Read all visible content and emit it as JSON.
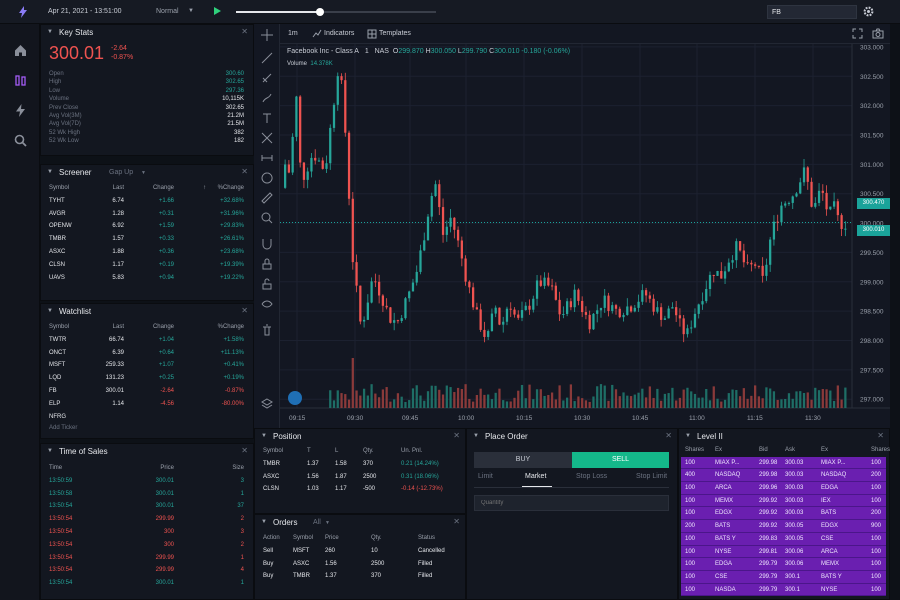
{
  "topbar": {
    "datetime": "Apr 21, 2021 - 13:51:00",
    "speed": "Normal",
    "symbol": "FB",
    "progress": 0.42
  },
  "key_stats": {
    "title": "Key Stats",
    "price": "300.01",
    "change": "-2.64",
    "pct": "-0.87%",
    "rows": [
      [
        "Open",
        "300.60",
        "up"
      ],
      [
        "High",
        "302.65",
        "up"
      ],
      [
        "Low",
        "297.36",
        "up"
      ],
      [
        "Volume",
        "10,115K",
        "wht"
      ],
      [
        "Prev Close",
        "302.65",
        "wht"
      ],
      [
        "Avg Vol(3M)",
        "21.2M",
        "wht"
      ],
      [
        "Avg Vol(7D)",
        "21.5M",
        "wht"
      ],
      [
        "52 Wk High",
        "382",
        "wht"
      ],
      [
        "52 Wk Low",
        "182",
        "wht"
      ]
    ]
  },
  "screener": {
    "title": "Screener",
    "filter": "Gap Up",
    "headers": [
      "Symbol",
      "Last",
      "Change",
      "%Change"
    ],
    "rows": [
      [
        "TYHT",
        "6.74",
        "+1.66",
        "+32.68%"
      ],
      [
        "AVGR",
        "1.28",
        "+0.31",
        "+31.96%"
      ],
      [
        "OPENW",
        "6.92",
        "+1.59",
        "+29.83%"
      ],
      [
        "TMBR",
        "1.57",
        "+0.33",
        "+26.61%"
      ],
      [
        "ASXC",
        "1.88",
        "+0.36",
        "+23.68%"
      ],
      [
        "CLSN",
        "1.17",
        "+0.19",
        "+19.39%"
      ],
      [
        "UAVS",
        "5.83",
        "+0.94",
        "+19.22%"
      ]
    ]
  },
  "watchlist": {
    "title": "Watchlist",
    "headers": [
      "Symbol",
      "Last",
      "Change",
      "%Change"
    ],
    "add": "Add Ticker",
    "rows": [
      [
        "TWTR",
        "66.74",
        "+1.04",
        "+1.58%",
        "up"
      ],
      [
        "ONCT",
        "6.39",
        "+0.64",
        "+11.13%",
        "up"
      ],
      [
        "MSFT",
        "259.33",
        "+1.07",
        "+0.41%",
        "up"
      ],
      [
        "LQD",
        "131.23",
        "+0.25",
        "+0.19%",
        "up"
      ],
      [
        "FB",
        "300.01",
        "-2.64",
        "-0.87%",
        "dn"
      ],
      [
        "ELP",
        "1.14",
        "-4.56",
        "-80.00%",
        "dn"
      ],
      [
        "NFRG",
        "",
        "",
        "",
        "mut"
      ]
    ]
  },
  "time_sales": {
    "title": "Time of Sales",
    "headers": [
      "Time",
      "Price",
      "Size"
    ],
    "rows": [
      [
        "13:50:59",
        "300.01",
        "3",
        "up"
      ],
      [
        "13:50:58",
        "300.01",
        "1",
        "up"
      ],
      [
        "13:50:54",
        "300.01",
        "37",
        "up"
      ],
      [
        "13:50:54",
        "299.99",
        "2",
        "dn"
      ],
      [
        "13:50:54",
        "300",
        "3",
        "dn"
      ],
      [
        "13:50:54",
        "300",
        "2",
        "dn"
      ],
      [
        "13:50:54",
        "299.99",
        "1",
        "dn"
      ],
      [
        "13:50:54",
        "299.99",
        "4",
        "dn"
      ],
      [
        "13:50:54",
        "300.01",
        "1",
        "up"
      ]
    ]
  },
  "chart_toolbar": {
    "interval": "1m",
    "indicators": "Indicators",
    "templates": "Templates"
  },
  "chart_legend": {
    "name": "Facebook Inc - Class A",
    "interval": "1",
    "exch": "NAS",
    "o": "O",
    "ov": "299.870",
    "h": "H",
    "hv": "300.050",
    "l": "L",
    "lv": "299.790",
    "c": "C",
    "cv": "300.010",
    "chg": "-0.180 (-0.06%)",
    "vol": "Volume",
    "volv": "14.378K"
  },
  "chart_data": {
    "type": "candlestick",
    "y_ticks": [
      "303.000",
      "302.500",
      "302.000",
      "301.500",
      "301.000",
      "300.500",
      "300.000",
      "299.500",
      "299.000",
      "298.500",
      "298.000",
      "297.500",
      "297.000"
    ],
    "x_ticks": [
      "09:15",
      "09:30",
      "09:45",
      "10:00",
      "10:15",
      "10:30",
      "10:45",
      "11:00",
      "11:15",
      "11:30"
    ],
    "ylim": [
      296.85,
      303.05
    ],
    "badges": [
      "300.470",
      "300.010"
    ]
  },
  "position": {
    "title": "Position",
    "headers": [
      "Symbol",
      "T",
      "L",
      "Qty.",
      "Un. Pnl."
    ],
    "rows": [
      [
        "TMBR",
        "1.37",
        "1.58",
        "370",
        "0.21 (14.24%)",
        "up"
      ],
      [
        "ASXC",
        "1.56",
        "1.87",
        "2500",
        "0.31 (18.06%)",
        "up"
      ],
      [
        "CLSN",
        "1.03",
        "1.17",
        "-500",
        "-0.14 (-12.73%)",
        "dn"
      ]
    ]
  },
  "orders": {
    "title": "Orders",
    "filter": "All",
    "headers": [
      "Action",
      "Symbol",
      "Price",
      "Qty.",
      "Status"
    ],
    "rows": [
      [
        "Sell",
        "MSFT",
        "260",
        "10",
        "Cancelled"
      ],
      [
        "Buy",
        "ASXC",
        "1.56",
        "2500",
        "Filled"
      ],
      [
        "Buy",
        "TMBR",
        "1.37",
        "370",
        "Filled"
      ]
    ]
  },
  "place_order": {
    "title": "Place Order",
    "buy": "BUY",
    "sell": "SELL",
    "tabs": [
      "Limit",
      "Market",
      "Stop Loss",
      "Stop Limit"
    ],
    "qty_placeholder": "Quantity"
  },
  "level2": {
    "title": "Level II",
    "headers": [
      "Shares",
      "Ex",
      "Bid",
      "Ask",
      "Ex",
      "Shares"
    ],
    "rows": [
      [
        "100",
        "MIAX P...",
        "299.98",
        "300.03",
        "MIAX P...",
        "100"
      ],
      [
        "400",
        "NASDAQ",
        "299.98",
        "300.03",
        "NASDAQ",
        "200"
      ],
      [
        "100",
        "ARCA",
        "299.96",
        "300.03",
        "EDGA",
        "100"
      ],
      [
        "100",
        "MEMX",
        "299.92",
        "300.03",
        "IEX",
        "100"
      ],
      [
        "100",
        "EDGX",
        "299.92",
        "300.03",
        "BATS",
        "200"
      ],
      [
        "200",
        "BATS",
        "299.92",
        "300.05",
        "EDGX",
        "900"
      ],
      [
        "100",
        "BATS Y",
        "299.83",
        "300.05",
        "CSE",
        "100"
      ],
      [
        "100",
        "NYSE",
        "299.81",
        "300.06",
        "ARCA",
        "100"
      ],
      [
        "100",
        "EDGA",
        "299.79",
        "300.06",
        "MEMX",
        "100"
      ],
      [
        "100",
        "CSE",
        "299.79",
        "300.1",
        "BATS Y",
        "100"
      ],
      [
        "100",
        "NASDA",
        "299.79",
        "300.1",
        "NYSE",
        "100"
      ]
    ]
  }
}
